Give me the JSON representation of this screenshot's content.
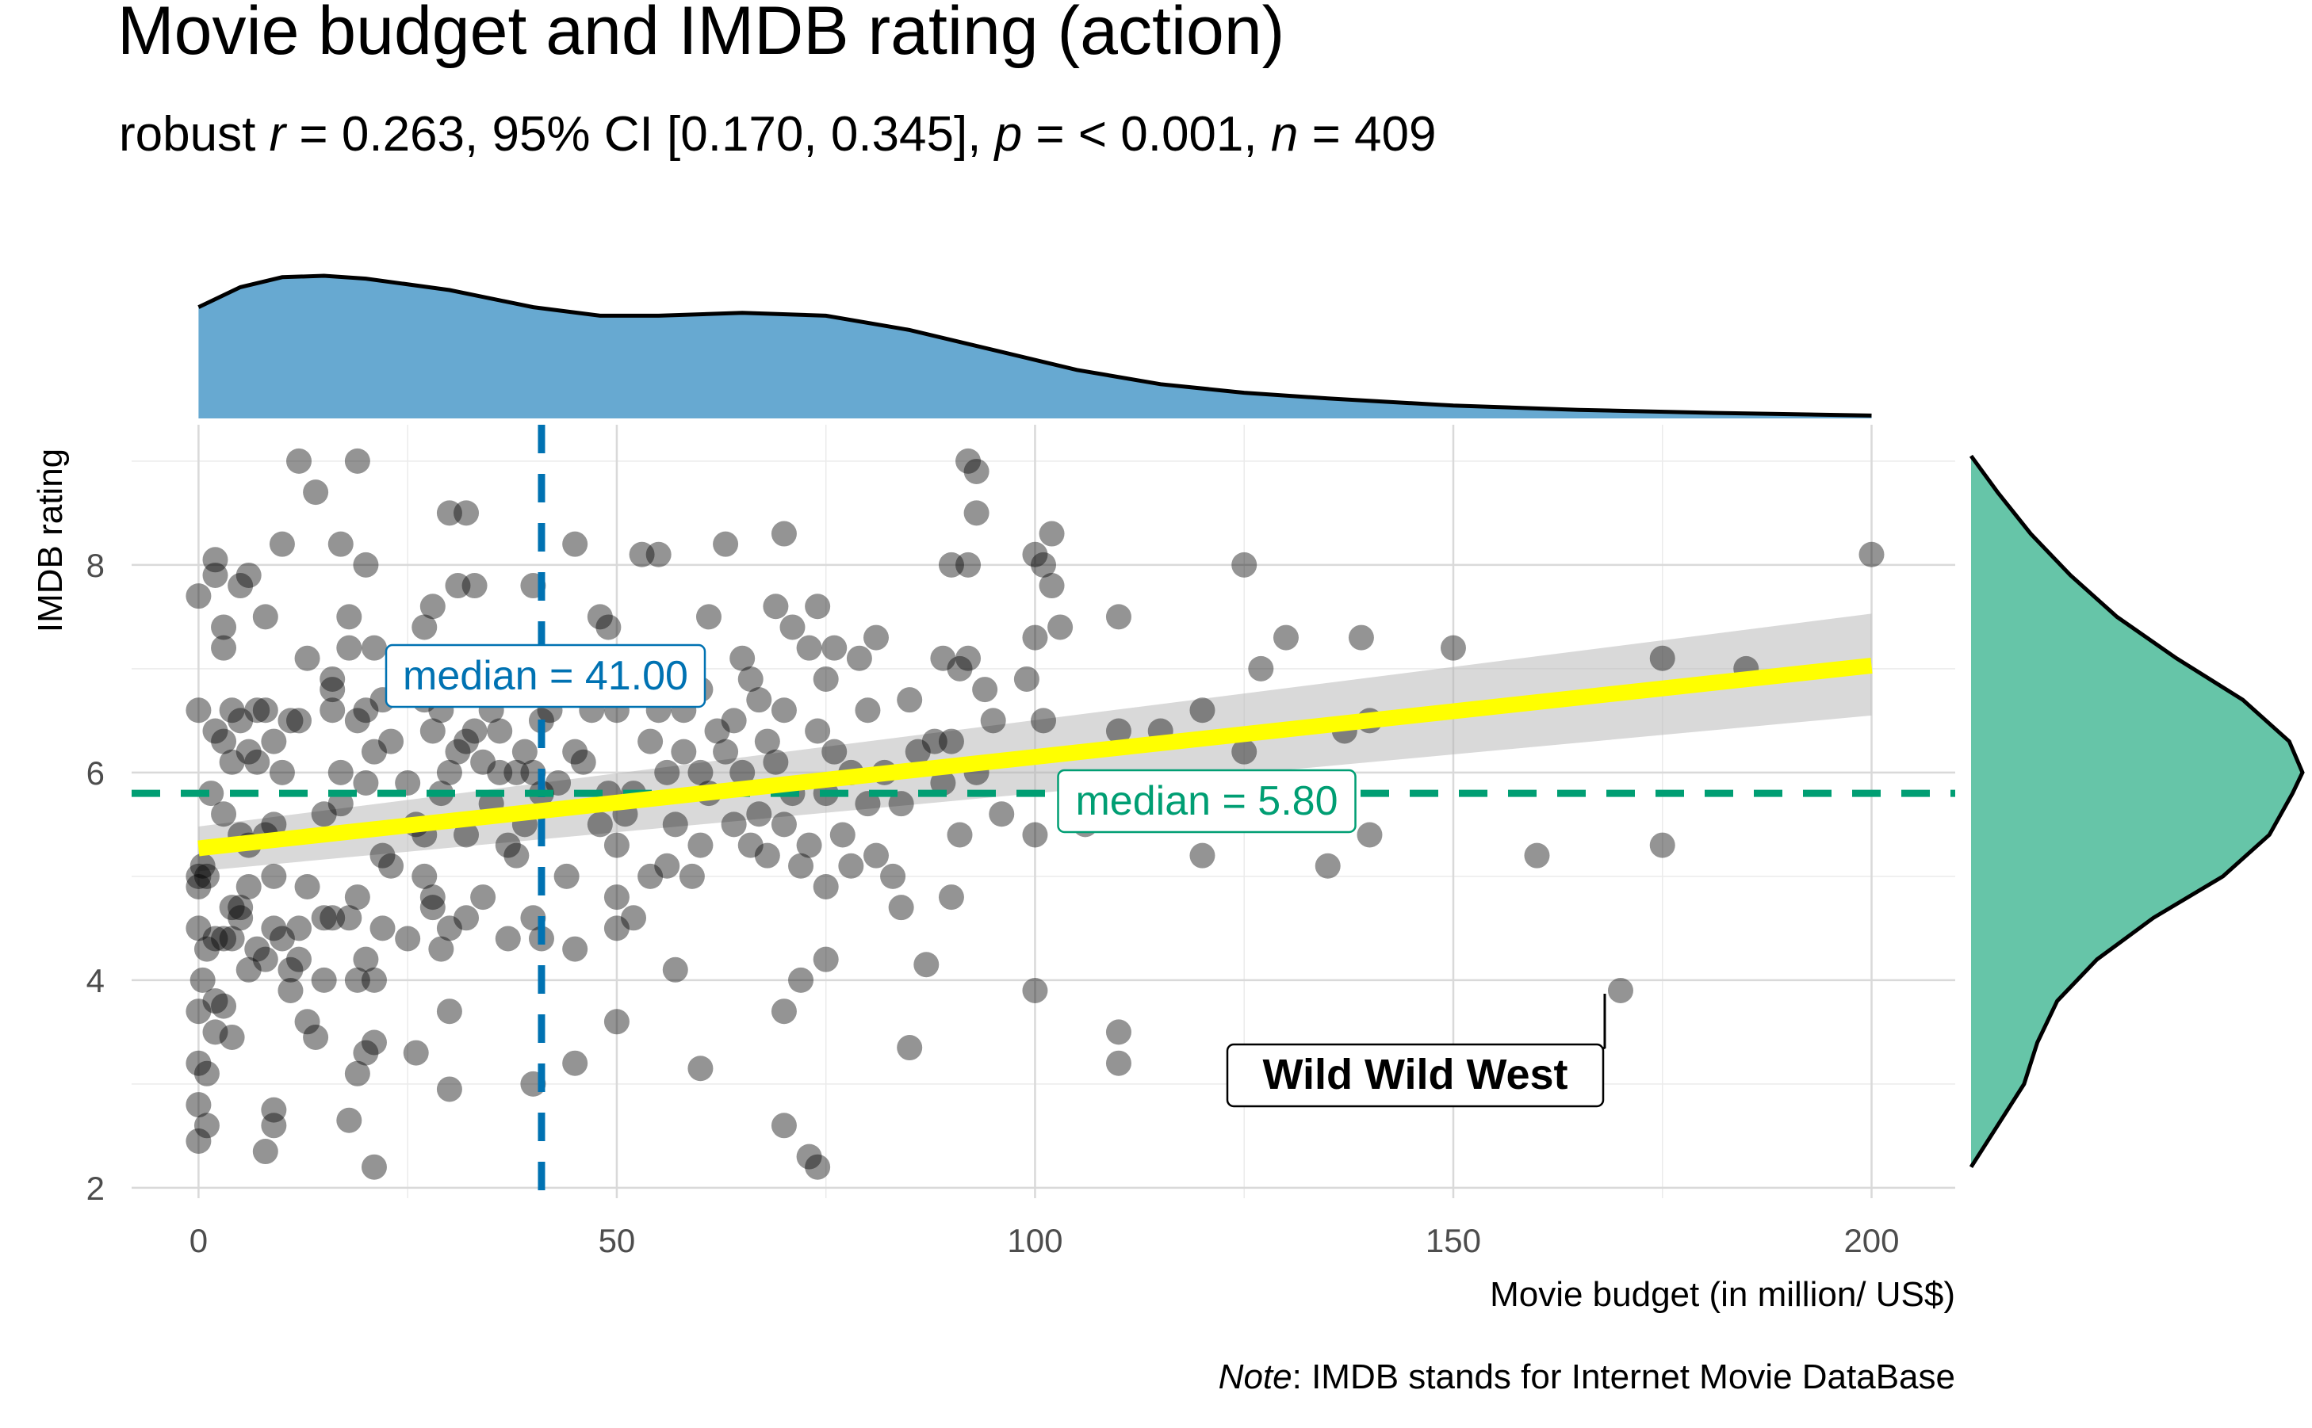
{
  "chart_data": {
    "type": "scatter",
    "title": "Movie budget and IMDB rating (action)",
    "subtitle": {
      "prefix": "robust ",
      "r_symbol": "r",
      "r_value": " = 0.263, 95% CI [0.170, 0.345], ",
      "p_symbol": "p",
      "p_value": " = < 0.001, ",
      "n_symbol": "n",
      "n_value": " = 409"
    },
    "xlabel": "Movie budget (in million/ US$)",
    "ylabel": "IMDB rating",
    "caption_italic": "Note",
    "caption_rest": ": IMDB stands for Internet Movie DataBase",
    "xlim": [
      -8,
      210
    ],
    "ylim": [
      1.9,
      9.35
    ],
    "x_ticks": [
      0,
      50,
      100,
      150,
      200
    ],
    "x_tick_labels": [
      "0",
      "50",
      "100",
      "150",
      "200"
    ],
    "y_ticks": [
      2,
      4,
      6,
      8
    ],
    "y_tick_labels": [
      "2",
      "4",
      "6",
      "8"
    ],
    "grid": true,
    "regression": {
      "x": [
        0,
        200
      ],
      "y": [
        5.27,
        7.03
      ],
      "ci_lower": [
        5.05,
        6.55
      ],
      "ci_upper": [
        5.48,
        7.53
      ],
      "color": "#ffff00"
    },
    "median_x": {
      "value": 41,
      "label": "median = 41.00",
      "color": "#0072b2"
    },
    "median_y": {
      "value": 5.8,
      "label": "median = 5.80",
      "color": "#009e73"
    },
    "annotation": {
      "label": "Wild Wild West",
      "x": 170,
      "y": 3.9
    },
    "marginal_x_color": "#67a9d1",
    "marginal_y_color": "#66c5a8",
    "point_color": "#000000",
    "points": [
      [
        0,
        7.7
      ],
      [
        0,
        6.6
      ],
      [
        0,
        5.0
      ],
      [
        0,
        4.9
      ],
      [
        0,
        4.5
      ],
      [
        0,
        3.7
      ],
      [
        0,
        3.2
      ],
      [
        0,
        2.8
      ],
      [
        0,
        2.45
      ],
      [
        0.5,
        5.1
      ],
      [
        0.5,
        4.0
      ],
      [
        1,
        5.0
      ],
      [
        1,
        3.1
      ],
      [
        1,
        2.6
      ],
      [
        1,
        4.3
      ],
      [
        1.5,
        5.8
      ],
      [
        2,
        7.9
      ],
      [
        2,
        8.05
      ],
      [
        2,
        6.4
      ],
      [
        2,
        4.4
      ],
      [
        2,
        3.8
      ],
      [
        2,
        3.5
      ],
      [
        3,
        7.4
      ],
      [
        3,
        7.2
      ],
      [
        3,
        6.3
      ],
      [
        3,
        5.6
      ],
      [
        3,
        4.4
      ],
      [
        3,
        3.75
      ],
      [
        4,
        6.6
      ],
      [
        4,
        6.1
      ],
      [
        4,
        4.7
      ],
      [
        4,
        4.4
      ],
      [
        4,
        3.45
      ],
      [
        5,
        7.8
      ],
      [
        5,
        6.5
      ],
      [
        5,
        5.4
      ],
      [
        5,
        4.7
      ],
      [
        5,
        4.6
      ],
      [
        6,
        7.9
      ],
      [
        6,
        6.2
      ],
      [
        6,
        5.3
      ],
      [
        6,
        4.9
      ],
      [
        6,
        4.1
      ],
      [
        7,
        6.6
      ],
      [
        7,
        6.1
      ],
      [
        7,
        4.3
      ],
      [
        8,
        7.5
      ],
      [
        8,
        6.6
      ],
      [
        8,
        5.4
      ],
      [
        8,
        4.2
      ],
      [
        8,
        2.35
      ],
      [
        9,
        6.3
      ],
      [
        9,
        5.5
      ],
      [
        9,
        5.0
      ],
      [
        9,
        4.5
      ],
      [
        9,
        2.75
      ],
      [
        9,
        2.6
      ],
      [
        10,
        8.2
      ],
      [
        10,
        6.0
      ],
      [
        10,
        4.4
      ],
      [
        11,
        6.5
      ],
      [
        11,
        4.1
      ],
      [
        11,
        3.9
      ],
      [
        12,
        9.0
      ],
      [
        12,
        6.5
      ],
      [
        12,
        4.5
      ],
      [
        12,
        4.2
      ],
      [
        13,
        7.1
      ],
      [
        13,
        4.9
      ],
      [
        13,
        3.6
      ],
      [
        14,
        8.7
      ],
      [
        14,
        3.45
      ],
      [
        15,
        5.6
      ],
      [
        15,
        4.6
      ],
      [
        15,
        4.0
      ],
      [
        16,
        6.8
      ],
      [
        16,
        6.6
      ],
      [
        16,
        6.9
      ],
      [
        16,
        4.6
      ],
      [
        17,
        8.2
      ],
      [
        17,
        6.0
      ],
      [
        17,
        5.7
      ],
      [
        18,
        7.5
      ],
      [
        18,
        7.2
      ],
      [
        18,
        4.6
      ],
      [
        18,
        2.65
      ],
      [
        19,
        9.0
      ],
      [
        19,
        6.5
      ],
      [
        19,
        4.8
      ],
      [
        19,
        4.0
      ],
      [
        19,
        3.1
      ],
      [
        20,
        8.0
      ],
      [
        20,
        6.6
      ],
      [
        20,
        5.9
      ],
      [
        20,
        4.2
      ],
      [
        20,
        3.3
      ],
      [
        21,
        7.2
      ],
      [
        21,
        6.2
      ],
      [
        21,
        4.0
      ],
      [
        21,
        3.4
      ],
      [
        21,
        2.2
      ],
      [
        22,
        6.7
      ],
      [
        22,
        5.2
      ],
      [
        22,
        4.5
      ],
      [
        23,
        6.3
      ],
      [
        23,
        5.1
      ],
      [
        24,
        7.0
      ],
      [
        25,
        5.9
      ],
      [
        25,
        4.4
      ],
      [
        26,
        5.5
      ],
      [
        26,
        3.3
      ],
      [
        27,
        7.4
      ],
      [
        27,
        6.7
      ],
      [
        27,
        5.4
      ],
      [
        27,
        5.0
      ],
      [
        28,
        7.6
      ],
      [
        28,
        6.4
      ],
      [
        28,
        4.8
      ],
      [
        28,
        4.7
      ],
      [
        29,
        6.6
      ],
      [
        29,
        5.8
      ],
      [
        29,
        4.3
      ],
      [
        30,
        8.5
      ],
      [
        30,
        7.0
      ],
      [
        30,
        6.0
      ],
      [
        30,
        4.5
      ],
      [
        30,
        3.7
      ],
      [
        30,
        2.95
      ],
      [
        31,
        7.8
      ],
      [
        31,
        6.2
      ],
      [
        32,
        8.5
      ],
      [
        32,
        6.3
      ],
      [
        32,
        5.4
      ],
      [
        32,
        4.6
      ],
      [
        33,
        7.8
      ],
      [
        33,
        6.4
      ],
      [
        34,
        6.1
      ],
      [
        34,
        4.8
      ],
      [
        35,
        6.6
      ],
      [
        35,
        5.7
      ],
      [
        36,
        6.0
      ],
      [
        36,
        6.4
      ],
      [
        37,
        5.3
      ],
      [
        37,
        4.4
      ],
      [
        38,
        6.0
      ],
      [
        38,
        5.2
      ],
      [
        39,
        5.5
      ],
      [
        39,
        6.2
      ],
      [
        40,
        7.8
      ],
      [
        40,
        6.0
      ],
      [
        40,
        4.6
      ],
      [
        40,
        3.0
      ],
      [
        41,
        6.5
      ],
      [
        41,
        5.8
      ],
      [
        41,
        4.4
      ],
      [
        42,
        7.1
      ],
      [
        42,
        6.6
      ],
      [
        43,
        5.9
      ],
      [
        44,
        5.0
      ],
      [
        45,
        8.2
      ],
      [
        45,
        6.2
      ],
      [
        45,
        4.3
      ],
      [
        45,
        3.2
      ],
      [
        46,
        6.1
      ],
      [
        47,
        6.6
      ],
      [
        48,
        7.5
      ],
      [
        48,
        5.5
      ],
      [
        49,
        7.4
      ],
      [
        49,
        5.8
      ],
      [
        50,
        6.6
      ],
      [
        50,
        5.3
      ],
      [
        50,
        4.8
      ],
      [
        50,
        4.5
      ],
      [
        50,
        3.6
      ],
      [
        51,
        5.6
      ],
      [
        52,
        5.8
      ],
      [
        52,
        4.6
      ],
      [
        53,
        8.1
      ],
      [
        53,
        7.1
      ],
      [
        54,
        6.3
      ],
      [
        54,
        5.0
      ],
      [
        55,
        8.1
      ],
      [
        55,
        6.6
      ],
      [
        56,
        6.0
      ],
      [
        56,
        5.1
      ],
      [
        57,
        5.5
      ],
      [
        57,
        4.1
      ],
      [
        58,
        6.6
      ],
      [
        58,
        6.2
      ],
      [
        59,
        5.0
      ],
      [
        60,
        6.8
      ],
      [
        60,
        6.0
      ],
      [
        60,
        5.3
      ],
      [
        60,
        3.15
      ],
      [
        61,
        7.5
      ],
      [
        61,
        5.8
      ],
      [
        62,
        6.4
      ],
      [
        63,
        8.2
      ],
      [
        63,
        6.2
      ],
      [
        64,
        6.5
      ],
      [
        64,
        5.5
      ],
      [
        65,
        7.1
      ],
      [
        65,
        6.0
      ],
      [
        66,
        6.9
      ],
      [
        66,
        5.3
      ],
      [
        67,
        6.7
      ],
      [
        67,
        5.6
      ],
      [
        68,
        6.3
      ],
      [
        68,
        5.2
      ],
      [
        69,
        7.6
      ],
      [
        69,
        6.1
      ],
      [
        70,
        8.3
      ],
      [
        70,
        6.6
      ],
      [
        70,
        5.5
      ],
      [
        70,
        3.7
      ],
      [
        70,
        2.6
      ],
      [
        71,
        7.4
      ],
      [
        71,
        5.8
      ],
      [
        72,
        4.0
      ],
      [
        72,
        5.1
      ],
      [
        73,
        7.2
      ],
      [
        73,
        5.3
      ],
      [
        73,
        2.3
      ],
      [
        74,
        7.6
      ],
      [
        74,
        6.4
      ],
      [
        74,
        2.2
      ],
      [
        75,
        6.9
      ],
      [
        75,
        5.8
      ],
      [
        75,
        4.9
      ],
      [
        75,
        4.2
      ],
      [
        76,
        7.2
      ],
      [
        76,
        6.2
      ],
      [
        77,
        5.4
      ],
      [
        78,
        6.0
      ],
      [
        78,
        5.1
      ],
      [
        79,
        7.1
      ],
      [
        80,
        6.6
      ],
      [
        80,
        5.7
      ],
      [
        81,
        7.3
      ],
      [
        81,
        5.2
      ],
      [
        82,
        6.0
      ],
      [
        83,
        5.0
      ],
      [
        84,
        5.7
      ],
      [
        84,
        4.7
      ],
      [
        85,
        6.7
      ],
      [
        85,
        3.35
      ],
      [
        86,
        6.2
      ],
      [
        87,
        4.15
      ],
      [
        88,
        6.3
      ],
      [
        89,
        7.1
      ],
      [
        89,
        5.9
      ],
      [
        90,
        8.0
      ],
      [
        90,
        6.3
      ],
      [
        90,
        4.8
      ],
      [
        91,
        7.0
      ],
      [
        91,
        5.4
      ],
      [
        92,
        9.0
      ],
      [
        92,
        8.0
      ],
      [
        92,
        7.1
      ],
      [
        93,
        8.9
      ],
      [
        93,
        8.5
      ],
      [
        93,
        6.0
      ],
      [
        94,
        6.8
      ],
      [
        95,
        6.5
      ],
      [
        96,
        5.6
      ],
      [
        99,
        6.9
      ],
      [
        100,
        8.1
      ],
      [
        100,
        7.3
      ],
      [
        100,
        5.4
      ],
      [
        100,
        3.9
      ],
      [
        101,
        8.0
      ],
      [
        101,
        6.5
      ],
      [
        102,
        7.8
      ],
      [
        102,
        8.3
      ],
      [
        103,
        7.4
      ],
      [
        106,
        5.5
      ],
      [
        110,
        6.4
      ],
      [
        110,
        7.5
      ],
      [
        110,
        3.5
      ],
      [
        110,
        3.2
      ],
      [
        115,
        6.4
      ],
      [
        120,
        6.6
      ],
      [
        120,
        5.2
      ],
      [
        125,
        8.0
      ],
      [
        125,
        6.2
      ],
      [
        127,
        7.0
      ],
      [
        130,
        7.3
      ],
      [
        135,
        5.1
      ],
      [
        137,
        6.4
      ],
      [
        139,
        7.3
      ],
      [
        140,
        5.4
      ],
      [
        140,
        6.5
      ],
      [
        150,
        7.2
      ],
      [
        160,
        5.2
      ],
      [
        170,
        3.9
      ],
      [
        175,
        7.1
      ],
      [
        175,
        5.3
      ],
      [
        185,
        7.0
      ],
      [
        200,
        8.1
      ]
    ]
  }
}
